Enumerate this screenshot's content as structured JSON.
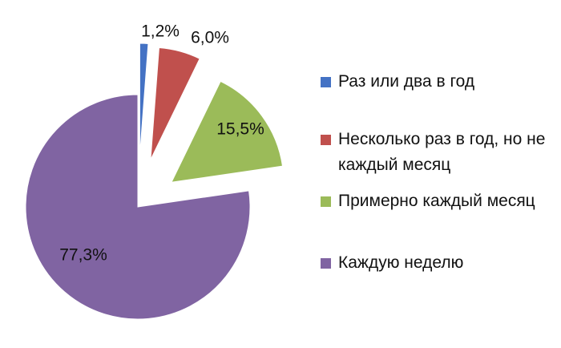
{
  "chart_data": {
    "type": "pie",
    "exploded": true,
    "legend_position": "right",
    "slices": [
      {
        "name": "Раз или два в год",
        "value": 1.2,
        "label": "1,2%",
        "color": "#4472C4"
      },
      {
        "name": "Несколько раз в год, но не каждый месяц",
        "value": 6.0,
        "label": "6,0%",
        "color": "#C0504D"
      },
      {
        "name": "Примерно каждый месяц",
        "value": 15.5,
        "label": "15,5%",
        "color": "#9BBB59"
      },
      {
        "name": "Каждую неделю",
        "value": 77.3,
        "label": "77,3%",
        "color": "#8064A2"
      }
    ]
  }
}
